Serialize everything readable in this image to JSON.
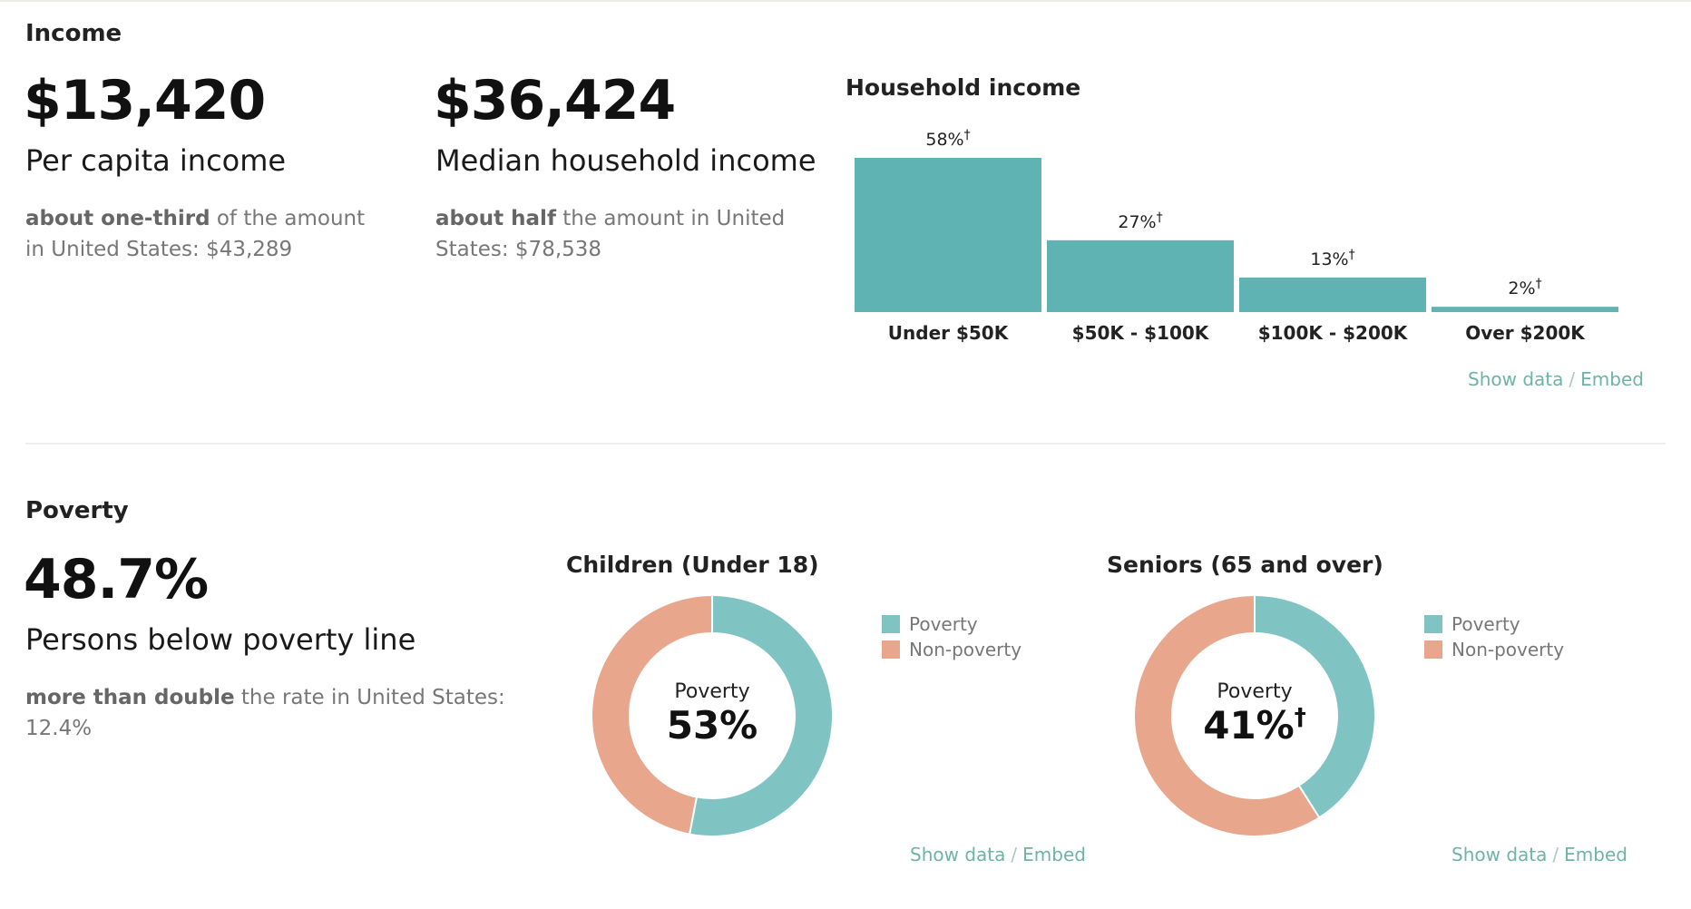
{
  "colors": {
    "teal": "#5fb3b3",
    "teal_light": "#7fc3c2",
    "salmon": "#e8a68d",
    "link": "#6db3a6"
  },
  "income": {
    "title": "Income",
    "per_capita": {
      "value": "$13,420",
      "label": "Per capita income",
      "note_bold": "about one-third",
      "note_text": "of the amount in United States: $43,289"
    },
    "median": {
      "value": "$36,424",
      "label": "Median household income",
      "note_bold": "about half",
      "note_text": "the amount in United States: $78,538"
    },
    "links": {
      "show": "Show data",
      "sep": "/",
      "embed": "Embed"
    }
  },
  "poverty": {
    "title": "Poverty",
    "value": "48.7%",
    "label": "Persons below poverty line",
    "note_bold": "more than double",
    "note_text": "the rate in United States: 12.4%",
    "children": {
      "title": "Children (Under 18)",
      "center_label": "Poverty",
      "center_value": "53%",
      "legend": [
        "Poverty",
        "Non-poverty"
      ],
      "links": {
        "show": "Show data",
        "sep": "/",
        "embed": "Embed"
      }
    },
    "seniors": {
      "title": "Seniors (65 and over)",
      "center_label": "Poverty",
      "center_value": "41%",
      "center_mark": "†",
      "legend": [
        "Poverty",
        "Non-poverty"
      ],
      "links": {
        "show": "Show data",
        "sep": "/",
        "embed": "Embed"
      }
    }
  },
  "chart_data": [
    {
      "type": "bar",
      "title": "Household income",
      "categories": [
        "Under $50K",
        "$50K - $100K",
        "$100K - $200K",
        "Over $200K"
      ],
      "values": [
        58,
        27,
        13,
        2
      ],
      "value_labels": [
        "58%",
        "27%",
        "13%",
        "2%"
      ],
      "value_mark": "†",
      "ylim": [
        0,
        58
      ],
      "grid": false,
      "color": "#5fb3b3"
    },
    {
      "type": "pie",
      "title": "Children (Under 18)",
      "categories": [
        "Poverty",
        "Non-poverty"
      ],
      "values": [
        53,
        47
      ],
      "colors": [
        "#7fc3c2",
        "#e8a68d"
      ],
      "legend": "right"
    },
    {
      "type": "pie",
      "title": "Seniors (65 and over)",
      "categories": [
        "Poverty",
        "Non-poverty"
      ],
      "values": [
        41,
        59
      ],
      "colors": [
        "#7fc3c2",
        "#e8a68d"
      ],
      "legend": "right"
    }
  ]
}
